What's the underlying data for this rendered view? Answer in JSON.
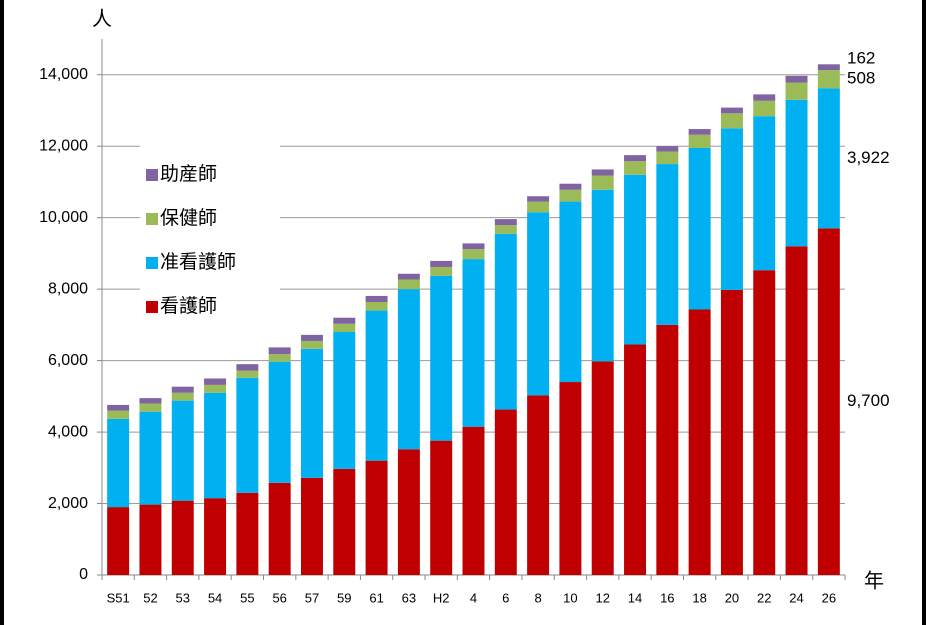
{
  "chart_data": {
    "type": "stacked_bar",
    "y_label": "人",
    "x_label": "年",
    "categories": [
      "S51",
      "52",
      "53",
      "54",
      "55",
      "56",
      "57",
      "59",
      "61",
      "63",
      "H2",
      "4",
      "6",
      "8",
      "10",
      "12",
      "14",
      "16",
      "18",
      "20",
      "22",
      "24",
      "26"
    ],
    "series": [
      {
        "name": "看護師",
        "color": "#c00000",
        "values": [
          1900,
          1970,
          2080,
          2150,
          2300,
          2580,
          2720,
          2970,
          3200,
          3520,
          3760,
          4150,
          4630,
          5030,
          5400,
          5980,
          6450,
          7000,
          7430,
          7980,
          8530,
          9200,
          9700
        ],
        "value_labels": [
          null,
          null,
          null,
          null,
          null,
          null,
          null,
          null,
          null,
          null,
          null,
          null,
          null,
          null,
          null,
          null,
          null,
          null,
          null,
          null,
          null,
          null,
          "9,700"
        ]
      },
      {
        "name": "准看護師",
        "color": "#00b0f0",
        "values": [
          2470,
          2600,
          2800,
          2950,
          3220,
          3390,
          3610,
          3830,
          4200,
          4480,
          4610,
          4690,
          4920,
          5120,
          5050,
          4800,
          4750,
          4500,
          4520,
          4520,
          4310,
          4100,
          3922
        ],
        "value_labels": [
          null,
          null,
          null,
          null,
          null,
          null,
          null,
          null,
          null,
          null,
          null,
          null,
          null,
          null,
          null,
          null,
          null,
          null,
          null,
          null,
          null,
          null,
          "3,922"
        ]
      },
      {
        "name": "保健師",
        "color": "#9bbb59",
        "values": [
          230,
          230,
          220,
          220,
          200,
          210,
          220,
          230,
          240,
          270,
          250,
          280,
          240,
          300,
          330,
          400,
          380,
          350,
          370,
          420,
          430,
          480,
          508
        ]
      },
      {
        "name": "助産師",
        "color": "#8064a2",
        "values": [
          160,
          150,
          170,
          180,
          180,
          190,
          170,
          170,
          170,
          160,
          170,
          160,
          170,
          150,
          170,
          170,
          170,
          150,
          160,
          160,
          180,
          190,
          162
        ]
      }
    ],
    "ylim": [
      0,
      15000
    ],
    "yticks": [
      0,
      {
        "value": 2000,
        "label": "2,000"
      },
      {
        "value": 4000,
        "label": "4,000"
      },
      {
        "value": 6000,
        "label": "6,000"
      },
      {
        "value": 8000,
        "label": "8,000"
      },
      {
        "value": 10000,
        "label": "10,000"
      },
      {
        "value": 12000,
        "label": "12,000"
      },
      {
        "value": 14000,
        "label": "14,000"
      }
    ],
    "grid": true,
    "legend": "upper-left"
  }
}
